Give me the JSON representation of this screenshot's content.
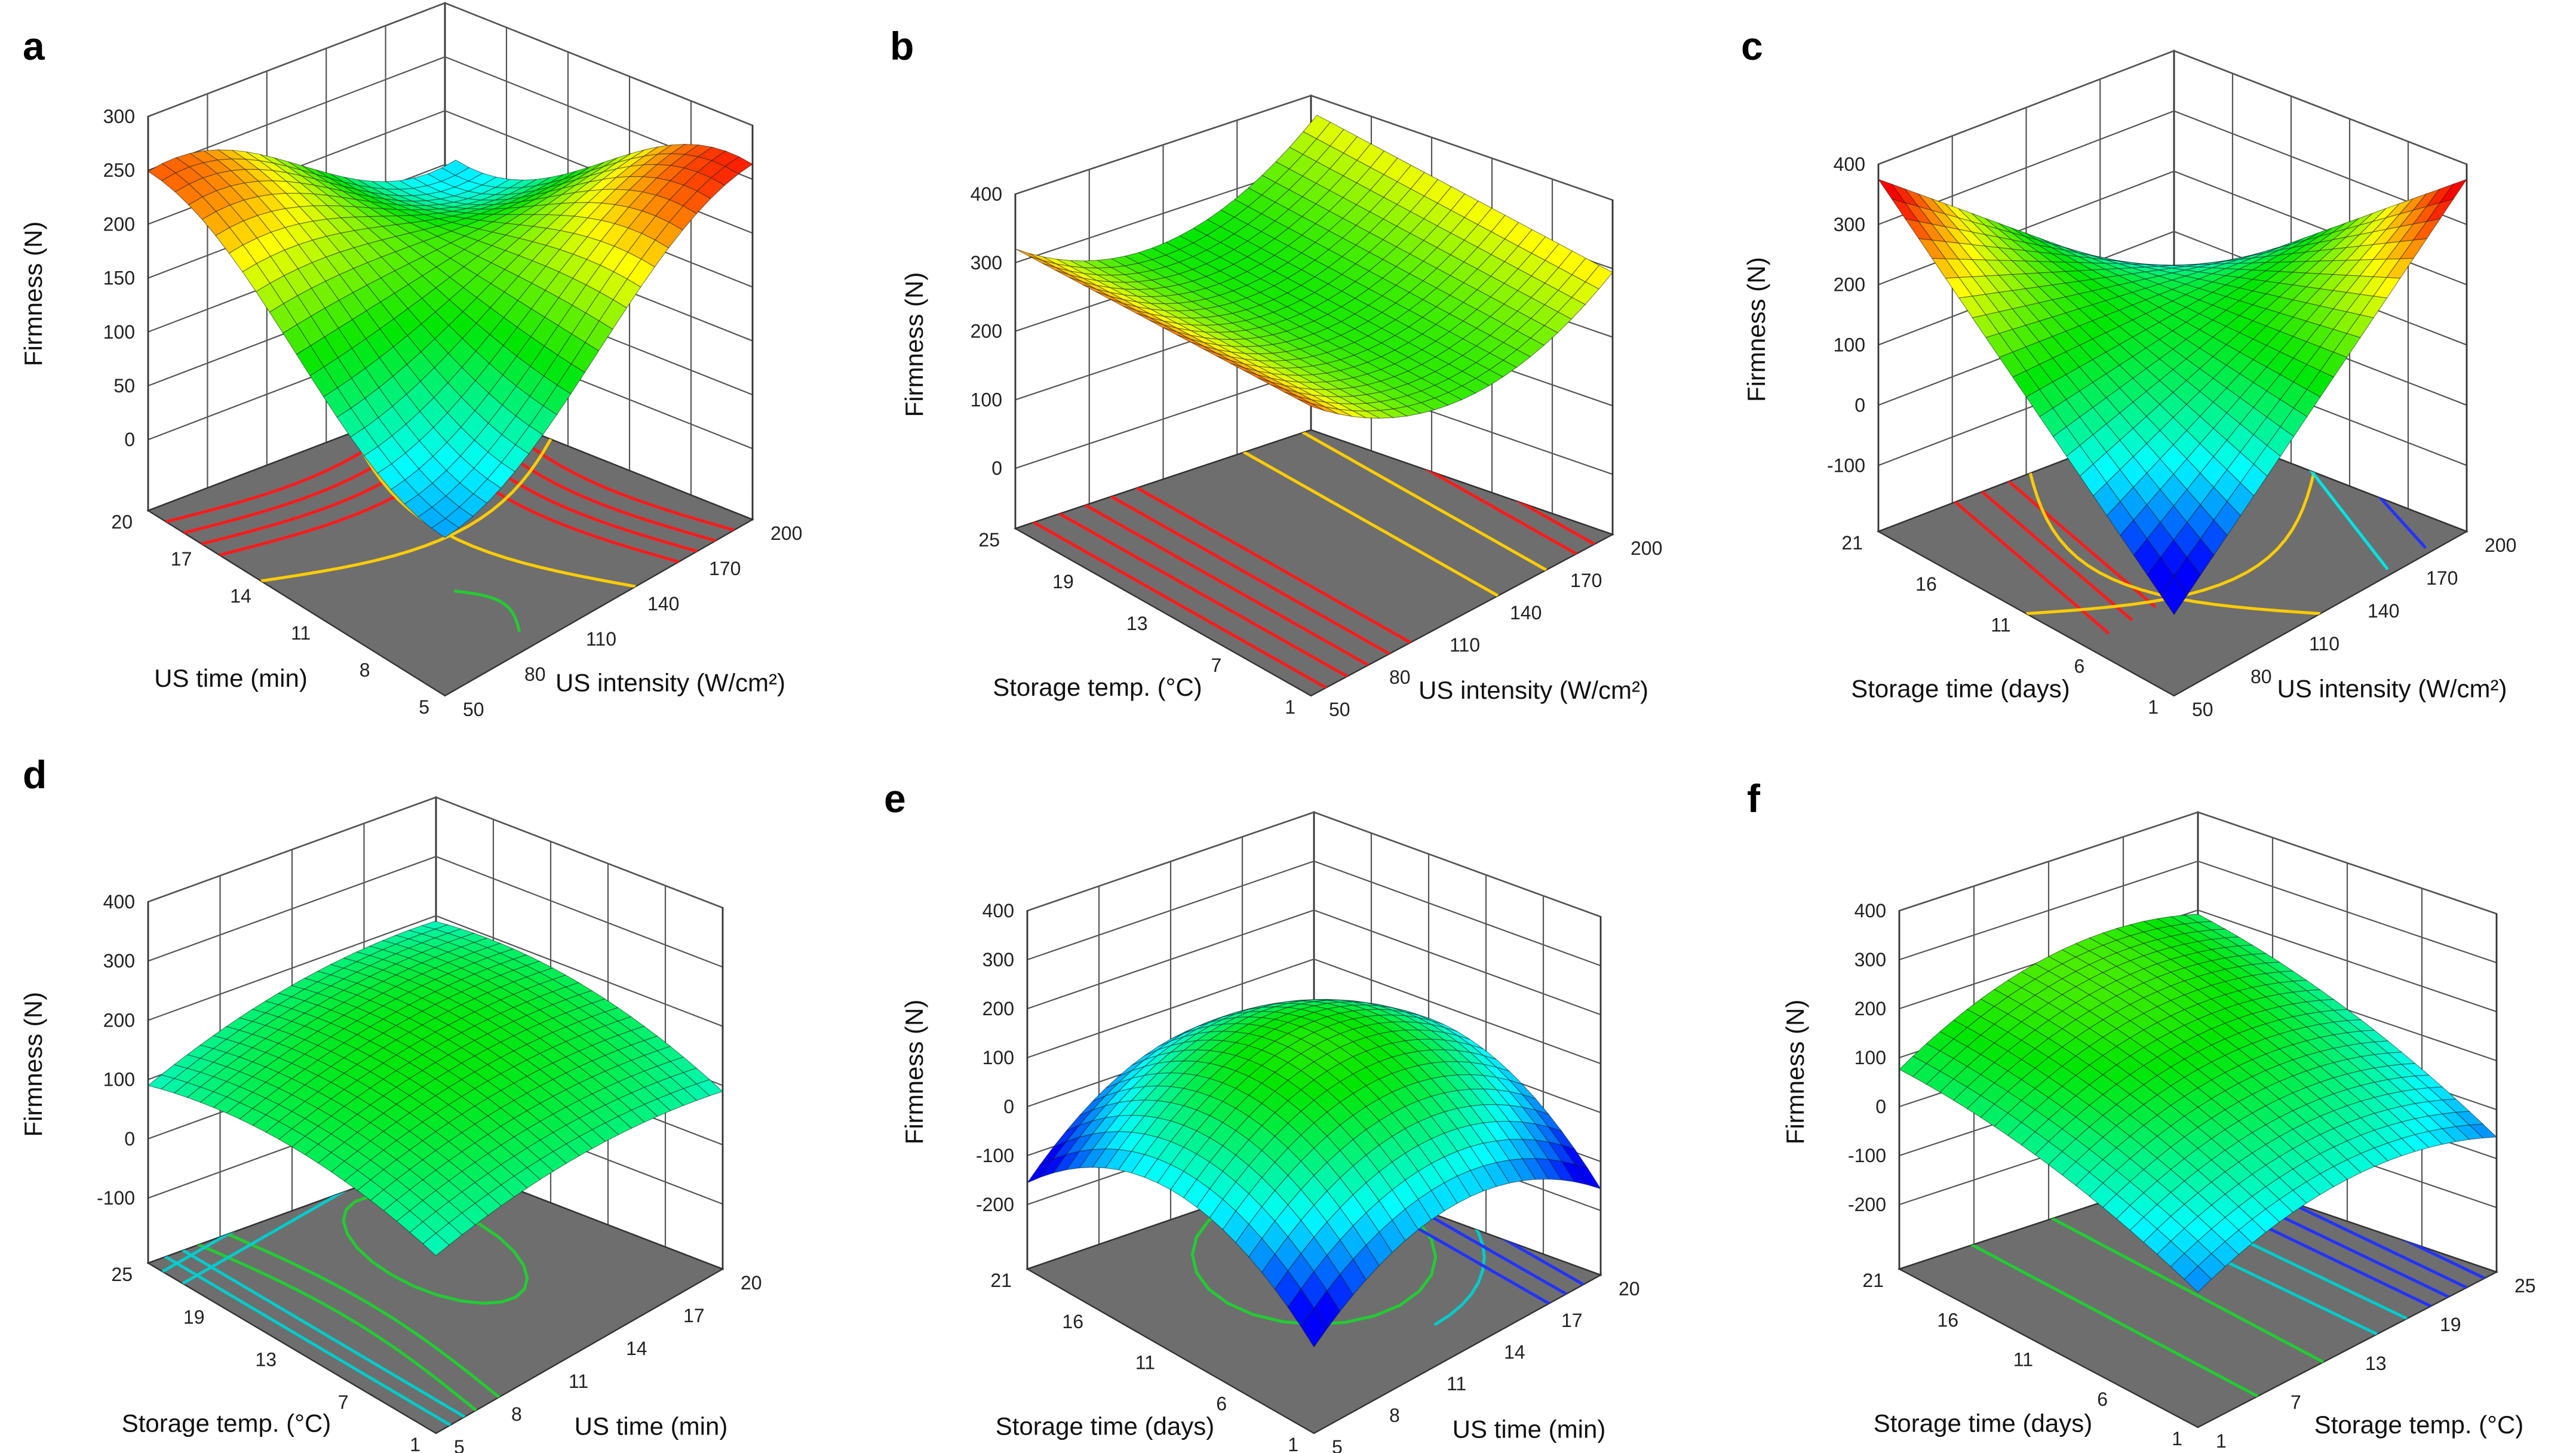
{
  "chart_data": [
    {
      "type": "surface",
      "panel": "a",
      "zlabel": "Firmness (N)",
      "zlim": [
        0,
        300
      ],
      "zticks": [
        "0",
        "50",
        "100",
        "150",
        "200",
        "250",
        "300"
      ],
      "xlabel": "US time (min)",
      "xticks": [
        "5",
        "8",
        "11",
        "14",
        "17",
        "20"
      ],
      "ylabel": "US intensity (W/cm²)",
      "yticks": [
        "50",
        "80",
        "110",
        "140",
        "170",
        "200"
      ],
      "contour_colors": [
        "#ff1a1a",
        "#ffcc00",
        "#22cc33"
      ],
      "surface_colors": [
        "#0000ff",
        "#00ffff",
        "#00ff00",
        "#ffff00",
        "#ff0000"
      ]
    },
    {
      "type": "surface",
      "panel": "b",
      "zlabel": "Firmness (N)",
      "zlim": [
        0,
        400
      ],
      "zticks": [
        "0",
        "100",
        "200",
        "300",
        "400"
      ],
      "xlabel": "Storage temp. (°C)",
      "xticks": [
        "1",
        "7",
        "13",
        "19",
        "25"
      ],
      "ylabel": "US intensity (W/cm²)",
      "yticks": [
        "50",
        "80",
        "110",
        "140",
        "170",
        "200"
      ],
      "contour_colors": [
        "#ff1a1a",
        "#ffcc00"
      ],
      "surface_colors": [
        "#0000ff",
        "#00ffff",
        "#00ff00",
        "#ffff00",
        "#ff0000"
      ]
    },
    {
      "type": "surface",
      "panel": "c",
      "zlabel": "Firmness (N)",
      "zlim": [
        -100,
        400
      ],
      "zticks": [
        "-100",
        "0",
        "100",
        "200",
        "300",
        "400"
      ],
      "xlabel": "Storage time (days)",
      "xticks": [
        "1",
        "6",
        "11",
        "16",
        "21"
      ],
      "ylabel": "US intensity (W/cm²)",
      "yticks": [
        "50",
        "80",
        "110",
        "140",
        "170",
        "200"
      ],
      "contour_colors": [
        "#ff1a1a",
        "#ffcc00",
        "#00e5e5",
        "#2233ff"
      ],
      "surface_colors": [
        "#0000ff",
        "#00ffff",
        "#00ff00",
        "#ffff00",
        "#ff0000"
      ]
    },
    {
      "type": "surface",
      "panel": "d",
      "zlabel": "Firmness (N)",
      "zlim": [
        -100,
        400
      ],
      "zticks": [
        "-100",
        "0",
        "100",
        "200",
        "300",
        "400"
      ],
      "xlabel": "Storage temp. (°C)",
      "xticks": [
        "1",
        "7",
        "13",
        "19",
        "25"
      ],
      "ylabel": "US time (min)",
      "yticks": [
        "5",
        "8",
        "11",
        "14",
        "17",
        "20"
      ],
      "contour_colors": [
        "#22cc33",
        "#00cccc"
      ],
      "surface_colors": [
        "#0000ff",
        "#00ffff",
        "#00ff00",
        "#ffff00",
        "#ff0000"
      ]
    },
    {
      "type": "surface",
      "panel": "e",
      "zlabel": "Firmness (N)",
      "zlim": [
        -200,
        400
      ],
      "zticks": [
        "-200",
        "-100",
        "0",
        "100",
        "200",
        "300",
        "400"
      ],
      "xlabel": "Storage time (days)",
      "xticks": [
        "1",
        "6",
        "11",
        "16",
        "21"
      ],
      "ylabel": "US time (min)",
      "yticks": [
        "5",
        "8",
        "11",
        "14",
        "17",
        "20"
      ],
      "contour_colors": [
        "#22cc33",
        "#00cccc",
        "#2233ff"
      ],
      "surface_colors": [
        "#0000ff",
        "#00ffff",
        "#00ff00",
        "#ffff00",
        "#ff0000"
      ]
    },
    {
      "type": "surface",
      "panel": "f",
      "zlabel": "Firmness (N)",
      "zlim": [
        -200,
        400
      ],
      "zticks": [
        "-200",
        "-100",
        "0",
        "100",
        "200",
        "300",
        "400"
      ],
      "xlabel": "Storage time (days)",
      "xticks": [
        "1",
        "6",
        "11",
        "16",
        "21"
      ],
      "ylabel": "Storage temp. (°C)",
      "yticks": [
        "1",
        "7",
        "13",
        "19",
        "25"
      ],
      "contour_colors": [
        "#22cc33",
        "#00cccc",
        "#2233ff"
      ],
      "surface_colors": [
        "#0000ff",
        "#00ffff",
        "#00ff00",
        "#ffff00",
        "#ff0000"
      ]
    }
  ]
}
